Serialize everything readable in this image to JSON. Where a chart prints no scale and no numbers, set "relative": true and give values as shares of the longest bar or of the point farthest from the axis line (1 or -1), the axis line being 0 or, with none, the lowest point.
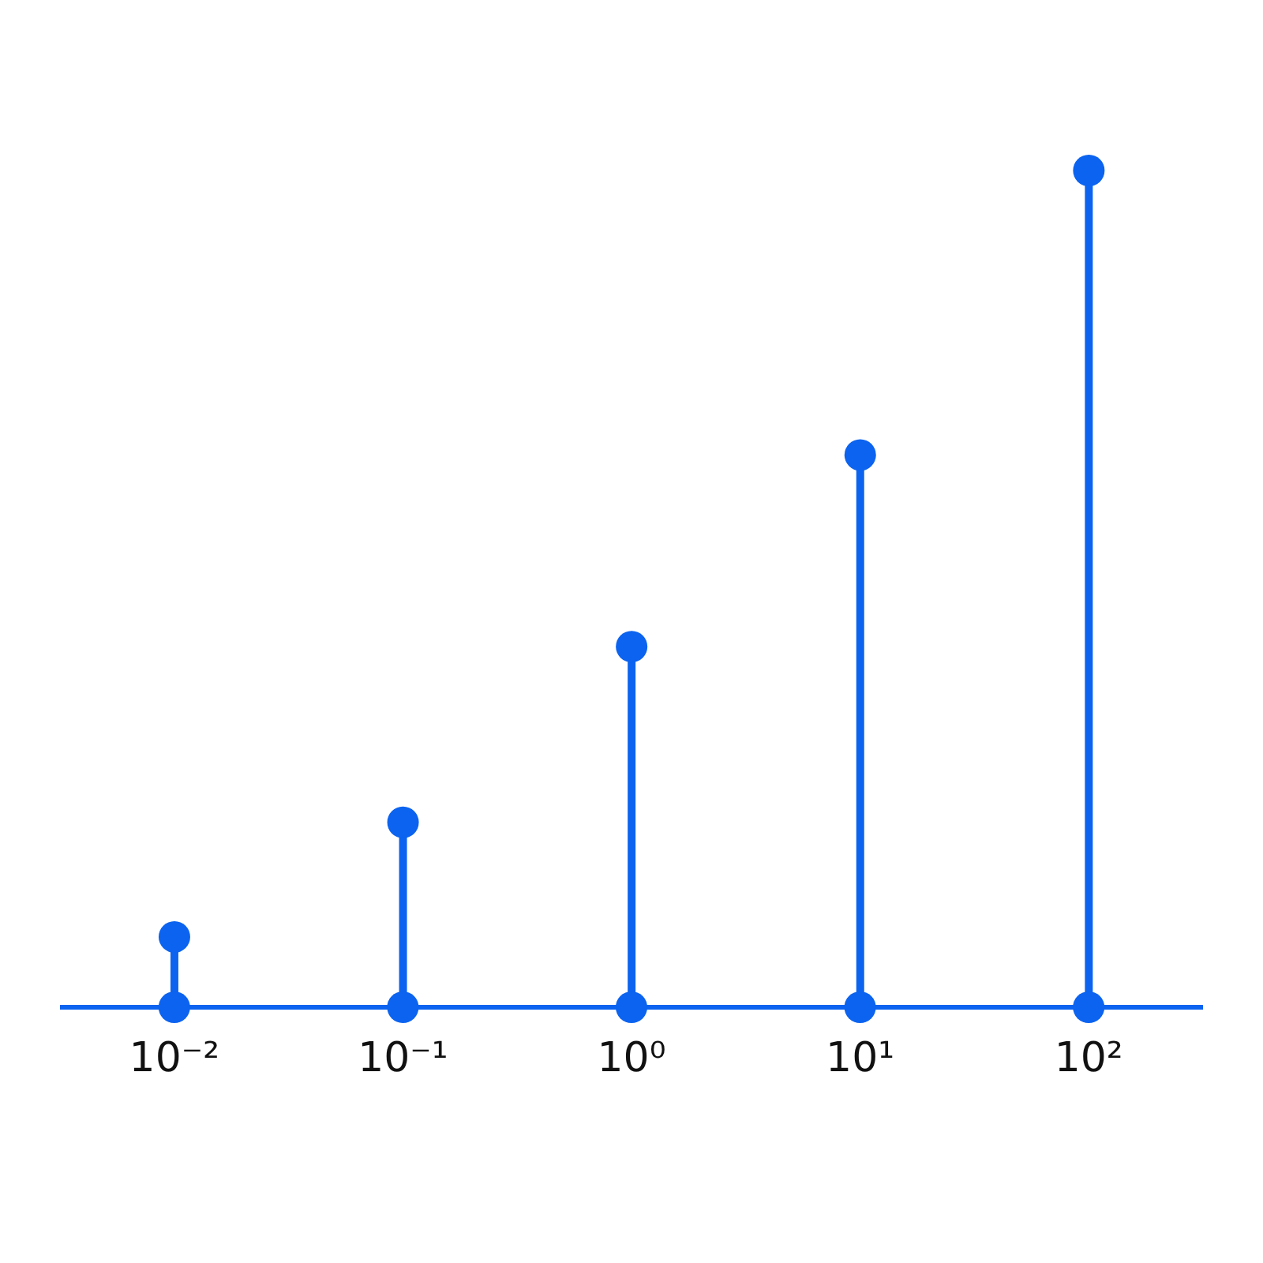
{
  "chart_data": {
    "type": "lollipop",
    "relative": true,
    "categories": [
      "10⁻²",
      "10⁻¹",
      "10⁰",
      "10¹",
      "10²"
    ],
    "series": [
      {
        "color": "#0b63f0",
        "values": [
          0.084,
          0.221,
          0.431,
          0.66,
          1
        ]
      },
      {
        "type": "scatter",
        "color": "#0b63f0",
        "values": [
          0,
          0,
          0,
          0,
          0
        ]
      }
    ],
    "grid": false,
    "legend": false
  }
}
